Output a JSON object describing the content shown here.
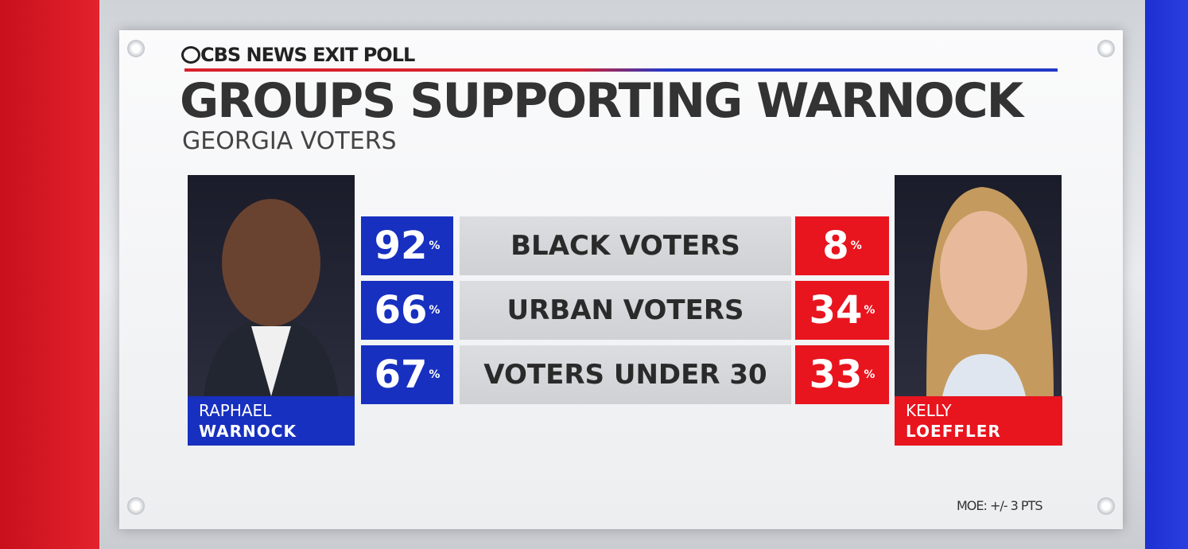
{
  "header": {
    "brand": "CBS NEWS EXIT POLL",
    "title": "GROUPS SUPPORTING WARNOCK",
    "subtitle": "GEORGIA VOTERS"
  },
  "candidates": {
    "left": {
      "first": "RAPHAEL",
      "last": "WARNOCK"
    },
    "right": {
      "first": "KELLY",
      "last": "LOEFFLER"
    }
  },
  "unit": "%",
  "rows": [
    {
      "group": "BLACK VOTERS",
      "warnock": 92,
      "loeffler": 8
    },
    {
      "group": "URBAN VOTERS",
      "warnock": 66,
      "loeffler": 34
    },
    {
      "group": "VOTERS UNDER 30",
      "warnock": 67,
      "loeffler": 33
    }
  ],
  "footnote": "MOE: +/- 3 PTS"
}
